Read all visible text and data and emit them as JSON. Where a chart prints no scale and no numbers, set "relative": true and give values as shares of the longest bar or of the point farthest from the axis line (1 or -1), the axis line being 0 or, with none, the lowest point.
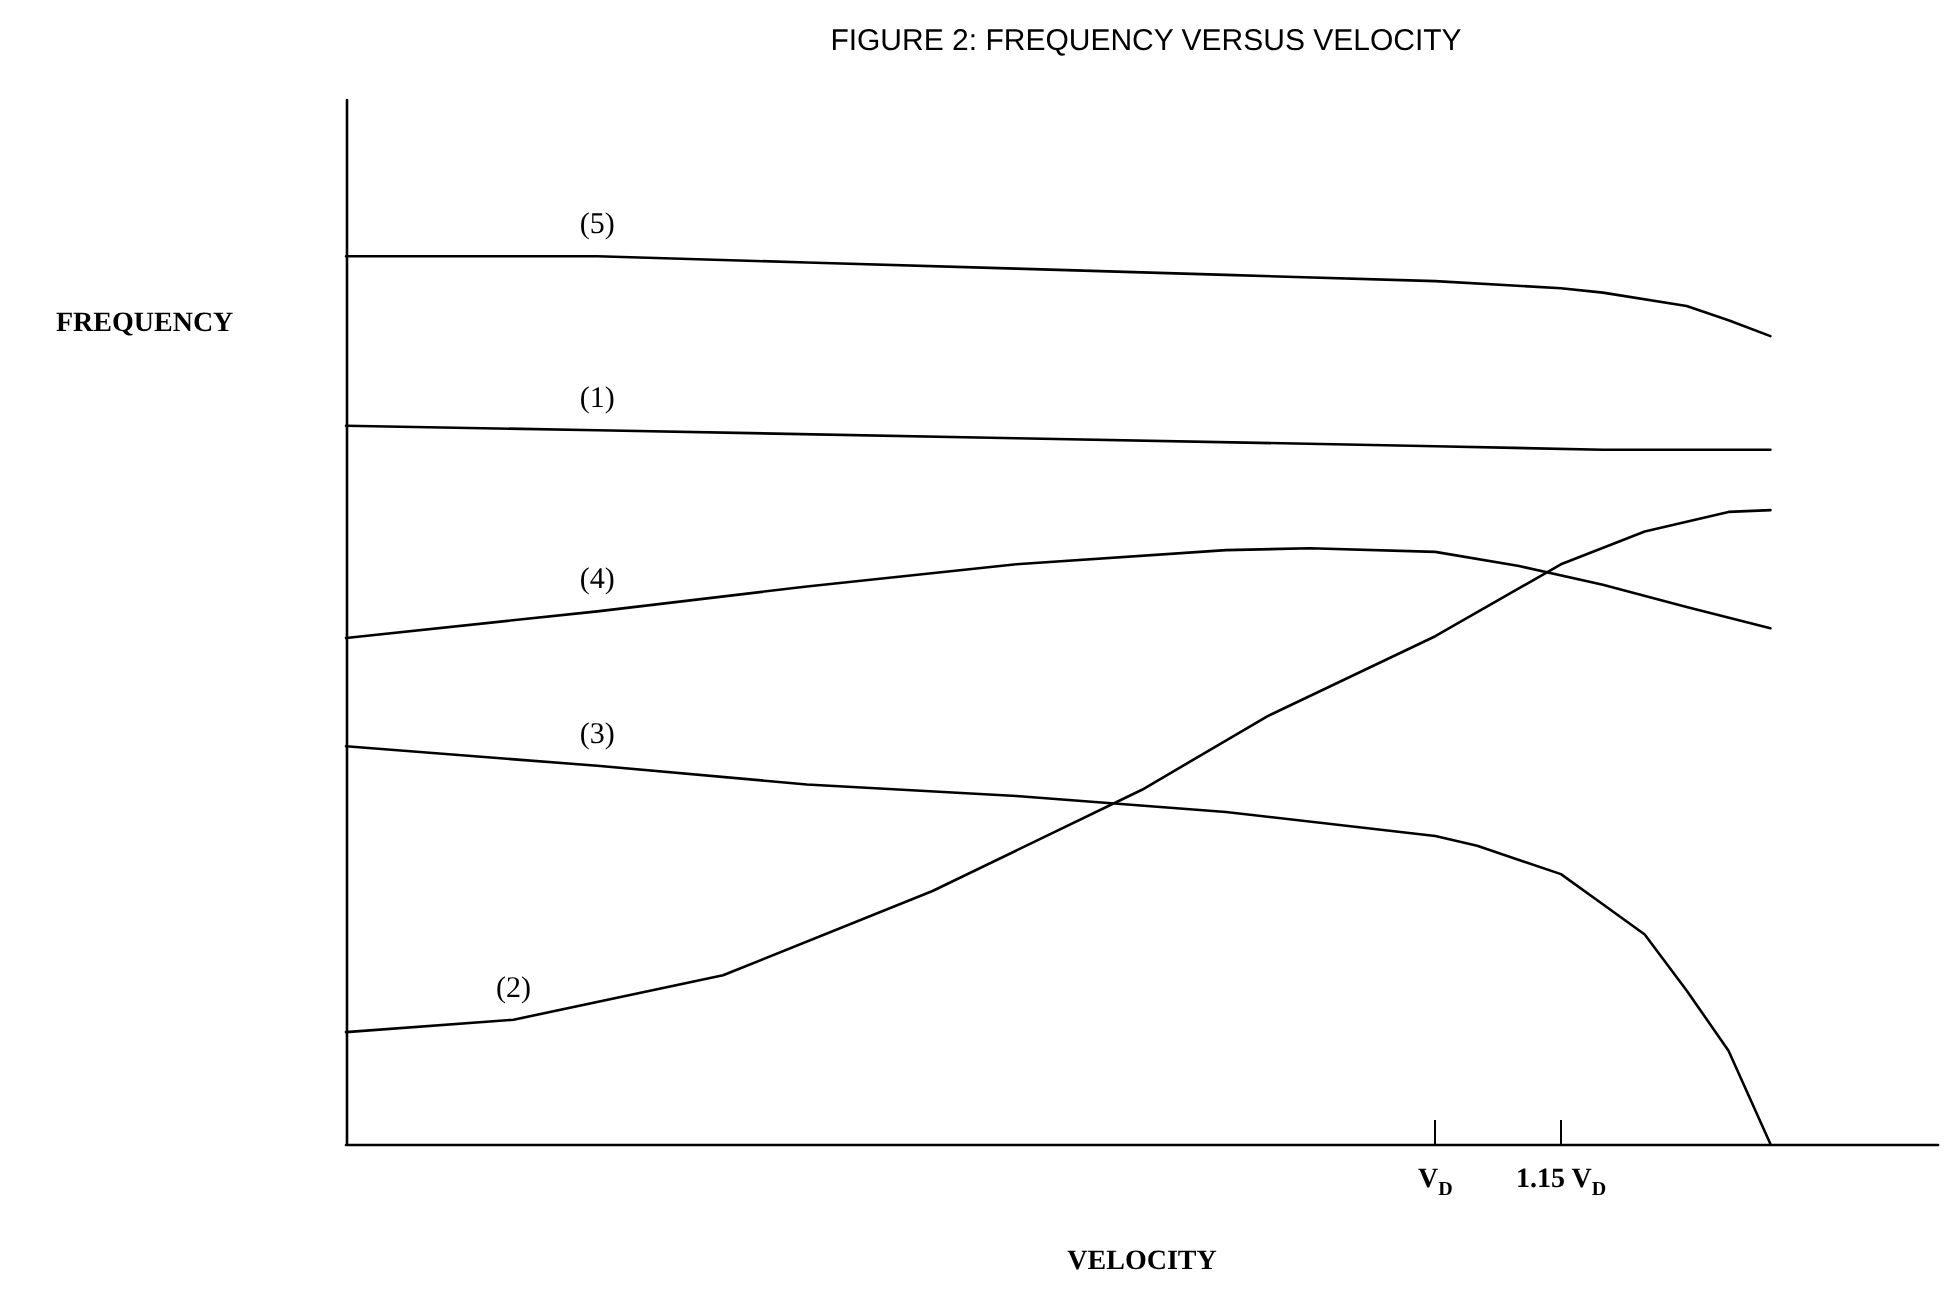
{
  "chart_data": {
    "type": "line",
    "title": "FIGURE 2: FREQUENCY VERSUS VELOCITY",
    "xlabel": "VELOCITY",
    "ylabel": "FREQUENCY",
    "relative": true,
    "tick_labels": "x",
    "grid": false,
    "legend": false,
    "marker": "none",
    "line_style": "solid",
    "categories": [
      null,
      null,
      null,
      null,
      null,
      null,
      null,
      null,
      null,
      null,
      null,
      null,
      null,
      null,
      null,
      null,
      null,
      null,
      null,
      null,
      null,
      null,
      null,
      null,
      null,
      null,
      "V$_{D}$",
      null,
      null,
      "1.15 V$_{D}$",
      null,
      null,
      null,
      null,
      null,
      null,
      null,
      null,
      null
    ],
    "series": [
      {
        "name": "(5)",
        "color": "#000000",
        "values": [
          1.0,
          null,
          null,
          null,
          null,
          null,
          1.0,
          null,
          null,
          null,
          null,
          0.993,
          null,
          null,
          null,
          null,
          0.986,
          null,
          null,
          null,
          null,
          0.979,
          null,
          null,
          null,
          null,
          0.972,
          null,
          null,
          0.964,
          0.959,
          null,
          0.944,
          0.928,
          0.91,
          null,
          null,
          null,
          null
        ]
      },
      {
        "name": "(1)",
        "color": "#000000",
        "values": [
          0.809,
          null,
          null,
          null,
          null,
          null,
          0.804,
          null,
          null,
          null,
          null,
          null,
          null,
          null,
          null,
          null,
          0.795,
          null,
          null,
          null,
          null,
          null,
          null,
          null,
          null,
          null,
          0.786,
          null,
          null,
          null,
          0.782,
          null,
          null,
          null,
          0.782,
          null,
          null,
          null,
          null
        ]
      },
      {
        "name": "(4)",
        "color": "#000000",
        "values": [
          0.57,
          null,
          null,
          null,
          null,
          null,
          0.6,
          null,
          null,
          null,
          null,
          0.628,
          null,
          null,
          null,
          null,
          0.653,
          null,
          null,
          null,
          null,
          0.669,
          null,
          0.671,
          null,
          null,
          0.667,
          null,
          0.651,
          null,
          0.63,
          null,
          0.605,
          null,
          0.581,
          null,
          null,
          null,
          null
        ]
      },
      {
        "name": "(3)",
        "color": "#000000",
        "values": [
          0.448,
          null,
          null,
          null,
          null,
          null,
          0.426,
          null,
          null,
          null,
          null,
          0.405,
          null,
          null,
          null,
          null,
          0.392,
          null,
          null,
          null,
          null,
          0.374,
          null,
          null,
          null,
          null,
          0.347,
          0.336,
          null,
          0.304,
          0.27,
          0.236,
          0.173,
          0.105,
          0.0,
          null,
          null,
          null,
          null
        ]
      },
      {
        "name": "(2)",
        "color": "#000000",
        "values": [
          0.126,
          null,
          null,
          null,
          0.14,
          null,
          null,
          null,
          null,
          0.19,
          null,
          null,
          null,
          null,
          0.285,
          null,
          null,
          null,
          null,
          0.399,
          null,
          null,
          0.482,
          null,
          null,
          null,
          0.572,
          null,
          null,
          0.653,
          null,
          0.69,
          null,
          0.712,
          0.714,
          null,
          null,
          null,
          null
        ]
      }
    ]
  }
}
